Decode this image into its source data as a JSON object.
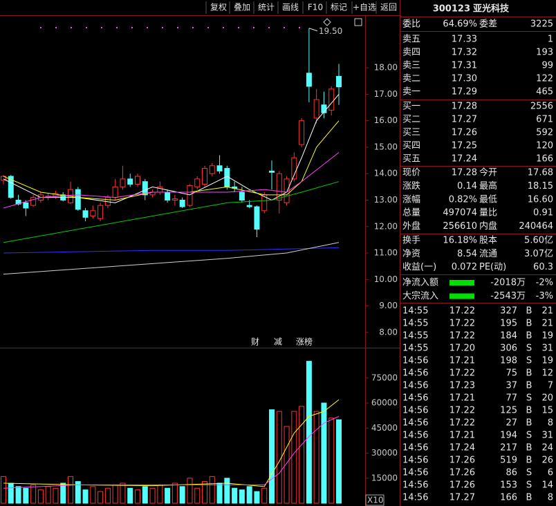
{
  "toolbar": [
    "复权",
    "叠加",
    "统计",
    "画线",
    "F10",
    "标记",
    "+自选",
    "返回"
  ],
  "chart_data": [
    {
      "type": "candlestick",
      "open": [
        13.75,
        13.9,
        13.0,
        12.9,
        12.8,
        13.0,
        13.1,
        13.15,
        13.2,
        12.9,
        13.4,
        12.6,
        12.4,
        12.3,
        12.8,
        13.1,
        13.5,
        13.8,
        13.6,
        13.7,
        13.2,
        13.3,
        13.3,
        13.0,
        13.0,
        12.8,
        13.5,
        13.6,
        14.0,
        14.3,
        14.2,
        13.5,
        13.3,
        12.8,
        12.75,
        12.6,
        14.1,
        13.0,
        12.9,
        13.8,
        15.1,
        17.8,
        16.1,
        16.6,
        16.4,
        17.68
      ],
      "high": [
        13.95,
        13.95,
        13.2,
        13.0,
        13.2,
        13.3,
        13.25,
        13.35,
        13.3,
        13.7,
        13.5,
        12.7,
        12.8,
        12.9,
        13.2,
        13.8,
        14.3,
        14.0,
        14.0,
        13.8,
        13.4,
        13.7,
        13.4,
        13.2,
        13.1,
        13.6,
        13.9,
        14.3,
        14.4,
        14.7,
        14.3,
        13.7,
        13.5,
        13.0,
        12.8,
        13.3,
        14.5,
        14.1,
        13.9,
        14.8,
        16.1,
        19.5,
        17.2,
        17.1,
        17.3,
        18.15
      ],
      "low": [
        13.6,
        13.05,
        12.8,
        12.4,
        12.75,
        12.9,
        13.0,
        13.05,
        12.95,
        12.85,
        12.6,
        12.2,
        12.3,
        12.2,
        12.7,
        13.0,
        13.4,
        13.5,
        13.5,
        13.0,
        13.1,
        13.2,
        12.9,
        12.8,
        12.7,
        12.75,
        13.4,
        13.5,
        13.9,
        14.0,
        13.4,
        13.3,
        12.9,
        12.7,
        11.6,
        12.5,
        13.4,
        12.5,
        12.8,
        13.7,
        15.0,
        16.7,
        15.9,
        16.1,
        16.2,
        16.6
      ],
      "close": [
        13.9,
        13.1,
        12.85,
        12.7,
        13.1,
        13.2,
        13.15,
        13.25,
        13.0,
        13.4,
        12.65,
        12.35,
        12.6,
        12.8,
        13.1,
        13.5,
        13.8,
        13.6,
        13.9,
        13.2,
        13.3,
        13.5,
        13.0,
        13.05,
        12.75,
        13.55,
        13.8,
        14.2,
        14.3,
        14.1,
        13.5,
        13.45,
        13.0,
        12.75,
        11.9,
        13.2,
        14.05,
        14.0,
        13.8,
        14.6,
        16.0,
        17.3,
        16.8,
        16.3,
        17.2,
        17.28
      ],
      "lines": [
        {
          "color": "#ffffff",
          "x": [
            0,
            5,
            10,
            15,
            20,
            25,
            30,
            33,
            36,
            38,
            40,
            42,
            45
          ],
          "values": [
            13.8,
            13.1,
            13.1,
            12.9,
            13.5,
            13.2,
            13.9,
            13.4,
            13.0,
            13.3,
            14.6,
            16.0,
            17.0
          ]
        },
        {
          "color": "#ffff00",
          "x": [
            0,
            5,
            10,
            15,
            20,
            25,
            30,
            35,
            38,
            40,
            42,
            45
          ],
          "values": [
            13.9,
            13.3,
            13.1,
            13.0,
            13.3,
            13.3,
            13.5,
            13.2,
            13.2,
            13.7,
            15.0,
            16.0
          ]
        },
        {
          "color": "#ff44ff",
          "x": [
            0,
            5,
            10,
            15,
            20,
            25,
            30,
            35,
            38,
            40,
            45
          ],
          "values": [
            12.7,
            13.1,
            13.2,
            13.1,
            13.3,
            13.3,
            13.3,
            13.4,
            13.3,
            13.7,
            14.8
          ]
        },
        {
          "color": "#00d000",
          "x": [
            0,
            10,
            20,
            30,
            36,
            40,
            45
          ],
          "values": [
            11.4,
            11.9,
            12.4,
            12.9,
            13.0,
            13.3,
            13.7
          ]
        },
        {
          "color": "#3030ff",
          "x": [
            0,
            20,
            30,
            45
          ],
          "values": [
            11.0,
            11.1,
            11.1,
            11.2
          ]
        },
        {
          "color": "#d0d0d0",
          "x": [
            0,
            10,
            20,
            30,
            38,
            45
          ],
          "values": [
            10.2,
            10.4,
            10.6,
            10.8,
            11.0,
            11.4
          ]
        }
      ],
      "ylim": [
        7.5,
        19.78
      ],
      "yticks": [
        {
          "value": 8,
          "label": "8.00"
        },
        {
          "value": 9,
          "label": "9.00"
        },
        {
          "value": 10,
          "label": "10.00"
        },
        {
          "value": 11,
          "label": "11.00"
        },
        {
          "value": 12,
          "label": "12.00"
        },
        {
          "value": 13,
          "label": "13.00"
        },
        {
          "value": 14,
          "label": "14.00"
        },
        {
          "value": 15,
          "label": "15.00"
        },
        {
          "value": 16,
          "label": "16.00"
        },
        {
          "value": 17,
          "label": "17.00"
        },
        {
          "value": 18,
          "label": "18.00"
        }
      ],
      "high_mark": {
        "value": 19.5,
        "label": "19.50"
      },
      "markers": [
        "财",
        "减",
        "涨榜"
      ]
    },
    {
      "type": "bar",
      "values": [
        16000,
        12000,
        10000,
        9000,
        11000,
        8000,
        10000,
        9000,
        12000,
        16000,
        13000,
        8000,
        10000,
        7000,
        9000,
        11000,
        12000,
        9000,
        8000,
        10000,
        9000,
        11000,
        9000,
        12000,
        10000,
        15000,
        9000,
        13000,
        16000,
        12000,
        15000,
        9000,
        8000,
        10000,
        7000,
        9000,
        56000,
        55000,
        46000,
        55000,
        58000,
        85000,
        55000,
        60000,
        51000,
        50000
      ],
      "lines": [
        {
          "color": "#ffff00",
          "x": [
            0,
            10,
            20,
            30,
            35,
            37,
            39,
            41,
            43,
            45
          ],
          "values": [
            12000,
            11000,
            10500,
            12000,
            10000,
            25000,
            42000,
            52000,
            55000,
            62000
          ]
        },
        {
          "color": "#ff44ff",
          "x": [
            0,
            10,
            20,
            30,
            35,
            37,
            39,
            41,
            43,
            45
          ],
          "values": [
            9000,
            11000,
            11000,
            11000,
            11000,
            18000,
            30000,
            40000,
            48000,
            52000
          ]
        }
      ],
      "ylim": [
        0,
        92300
      ],
      "yticks": [
        15000,
        30000,
        45000,
        60000,
        75000
      ],
      "unit_label": "X10"
    }
  ],
  "quote": {
    "code": "300123",
    "name": "亚光科技",
    "ratio": {
      "label": "委比",
      "value": "64.69%",
      "label2": "委差",
      "value2": "3225"
    },
    "asks": [
      {
        "label": "卖五",
        "price": "17.33",
        "volume": "1"
      },
      {
        "label": "卖四",
        "price": "17.32",
        "volume": "193"
      },
      {
        "label": "卖三",
        "price": "17.31",
        "volume": "99"
      },
      {
        "label": "卖二",
        "price": "17.30",
        "volume": "122"
      },
      {
        "label": "卖一",
        "price": "17.29",
        "volume": "465"
      }
    ],
    "bids": [
      {
        "label": "买一",
        "price": "17.28",
        "volume": "2556"
      },
      {
        "label": "买二",
        "price": "17.27",
        "volume": "671"
      },
      {
        "label": "买三",
        "price": "17.26",
        "volume": "592"
      },
      {
        "label": "买四",
        "price": "17.25",
        "volume": "120"
      },
      {
        "label": "买五",
        "price": "17.24",
        "volume": "166"
      }
    ],
    "stats": [
      {
        "label": "现价",
        "value": "17.28",
        "color": "#ff4444",
        "label2": "今开",
        "value2": "17.68",
        "color2": "#ff4444"
      },
      {
        "label": "涨跌",
        "value": "0.14",
        "color": "#ff4444",
        "label2": "最高",
        "value2": "18.15",
        "color2": "#ff4444"
      },
      {
        "label": "涨幅",
        "value": "0.82%",
        "color": "#ff4444",
        "label2": "最低",
        "value2": "16.60",
        "color2": "#00e000"
      },
      {
        "label": "总量",
        "value": "497074",
        "color": "#ffff00",
        "label2": "量比",
        "value2": "0.91",
        "color2": "#ffff00"
      },
      {
        "label": "外盘",
        "value": "256610",
        "color": "#ff4444",
        "label2": "内盘",
        "value2": "240464",
        "color2": "#00e000"
      }
    ],
    "fundamentals": [
      {
        "label": "换手",
        "value": "16.18%",
        "label2": "股本",
        "value2": "5.60亿"
      },
      {
        "label": "净资",
        "value": "8.54",
        "label2": "流通",
        "value2": "3.07亿"
      },
      {
        "label": "收益(一)",
        "value": "0.072",
        "label2": "PE(动)",
        "value2": "60.3"
      }
    ],
    "flows": [
      {
        "label": "净流入额",
        "value": "-2018万",
        "pct": "-2%"
      },
      {
        "label": "大宗流入",
        "value": "-2543万",
        "pct": "-3%"
      }
    ],
    "trades": [
      {
        "time": "14:55",
        "price": "17.22",
        "volume": "327",
        "side": "B",
        "count": "21"
      },
      {
        "time": "14:55",
        "price": "17.22",
        "volume": "195",
        "side": "B",
        "count": "21"
      },
      {
        "time": "14:55",
        "price": "17.22",
        "volume": "184",
        "side": "B",
        "count": "19"
      },
      {
        "time": "14:55",
        "price": "17.20",
        "volume": "306",
        "side": "S",
        "count": "31"
      },
      {
        "time": "14:56",
        "price": "17.21",
        "volume": "198",
        "side": "S",
        "count": "19"
      },
      {
        "time": "14:56",
        "price": "17.22",
        "volume": "75",
        "side": "B",
        "count": "12"
      },
      {
        "time": "14:56",
        "price": "17.23",
        "volume": "37",
        "side": "B",
        "count": "7"
      },
      {
        "time": "14:56",
        "price": "17.21",
        "volume": "77",
        "side": "S",
        "count": "20"
      },
      {
        "time": "14:56",
        "price": "17.22",
        "volume": "125",
        "side": "B",
        "count": "15"
      },
      {
        "time": "14:56",
        "price": "17.22",
        "volume": "27",
        "side": "B",
        "count": "8"
      },
      {
        "time": "14:56",
        "price": "17.21",
        "volume": "194",
        "side": "S",
        "count": "31"
      },
      {
        "time": "14:56",
        "price": "17.24",
        "volume": "217",
        "side": "B",
        "count": "24"
      },
      {
        "time": "14:56",
        "price": "17.26",
        "volume": "519",
        "side": "B",
        "count": "26",
        "volume_color": "#ff44ff"
      },
      {
        "time": "14:56",
        "price": "17.26",
        "volume": "86",
        "side": "S",
        "count": "6"
      },
      {
        "time": "14:56",
        "price": "17.26",
        "volume": "153",
        "side": "S",
        "count": "14"
      },
      {
        "time": "14:56",
        "price": "17.27",
        "volume": "166",
        "side": "B",
        "count": "8"
      }
    ]
  }
}
